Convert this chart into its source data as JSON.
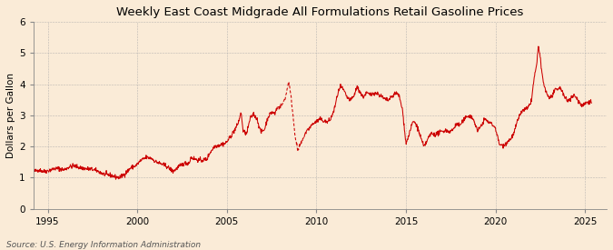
{
  "title": "Weekly East Coast Midgrade All Formulations Retail Gasoline Prices",
  "ylabel": "Dollars per Gallon",
  "source": "Source: U.S. Energy Information Administration",
  "line_color": "#cc0000",
  "dash_color": "#cc0000",
  "background_color": "#faebd7",
  "plot_bg_color": "#faebd7",
  "grid_color": "#aaaaaa",
  "ylim": [
    0,
    6
  ],
  "xlim_start": 1994.2,
  "xlim_end": 2026.2,
  "yticks": [
    0,
    1,
    2,
    3,
    4,
    5,
    6
  ],
  "xticks": [
    1995,
    2000,
    2005,
    2010,
    2015,
    2020,
    2025
  ],
  "title_fontsize": 9.5,
  "label_fontsize": 7.5,
  "source_fontsize": 6.5,
  "dashed_start_year": 2007.8,
  "dashed_end_year": 2009.3
}
